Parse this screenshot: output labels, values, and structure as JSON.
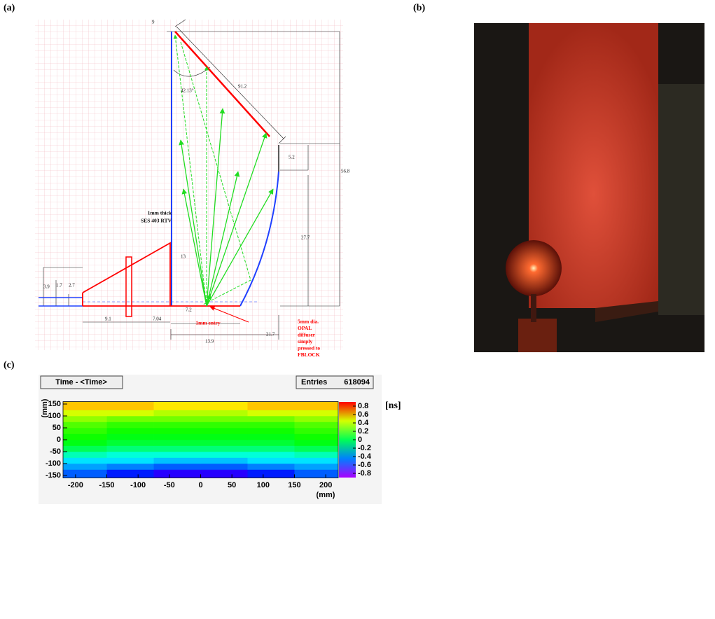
{
  "panel_labels": [
    "(a)",
    "(b)",
    "(c)"
  ],
  "diagram": {
    "dimensions": [
      "9",
      "42.13°",
      "91.2",
      "5.2",
      "56.8",
      "27.7",
      "3.9",
      "1.7",
      "2.7",
      "9.1",
      "7.04",
      "7.2",
      "13",
      "13.9",
      "21.7"
    ],
    "rtv_note": [
      "1mm thick",
      "SES 403 RTV"
    ],
    "entry_note": "1mm entry",
    "diffuser_note": [
      "5mm dia.",
      "OPAL",
      "diffuser",
      "simply",
      "pressed to",
      "FBLOCK"
    ]
  },
  "chart_data": {
    "type": "heatmap",
    "title": "Time - <Time>",
    "stats_label": "Entries",
    "stats_value": "618094",
    "x_label": "(mm)",
    "y_label": "(mm)",
    "z_label": "[ns]",
    "xbins": [
      -220,
      -150,
      -75,
      0,
      75,
      150,
      220
    ],
    "ybins": [
      -160,
      -125,
      -100,
      -75,
      -50,
      -25,
      0,
      25,
      50,
      75,
      100,
      125,
      160
    ],
    "values": [
      [
        -0.5,
        -0.6,
        -0.7,
        -0.7,
        -0.6,
        -0.5
      ],
      [
        -0.4,
        -0.45,
        -0.5,
        -0.5,
        -0.45,
        -0.4
      ],
      [
        -0.3,
        -0.3,
        -0.35,
        -0.35,
        -0.3,
        -0.3
      ],
      [
        -0.15,
        -0.2,
        -0.2,
        -0.2,
        -0.2,
        -0.15
      ],
      [
        0,
        -0.05,
        -0.05,
        -0.05,
        -0.05,
        0
      ],
      [
        0.1,
        0.05,
        0.05,
        0.05,
        0.05,
        0.1
      ],
      [
        0.15,
        0.1,
        0.1,
        0.1,
        0.1,
        0.15
      ],
      [
        0.2,
        0.15,
        0.15,
        0.15,
        0.15,
        0.2
      ],
      [
        0.25,
        0.2,
        0.2,
        0.2,
        0.2,
        0.25
      ],
      [
        0.35,
        0.3,
        0.3,
        0.3,
        0.3,
        0.35
      ],
      [
        0.45,
        0.45,
        0.4,
        0.4,
        0.45,
        0.45
      ],
      [
        0.6,
        0.6,
        0.55,
        0.55,
        0.6,
        0.6
      ]
    ],
    "xlim": [
      -220,
      220
    ],
    "ylim": [
      -160,
      160
    ],
    "zlim": [
      -0.9,
      0.9
    ],
    "xticks": [
      -200,
      -150,
      -100,
      -50,
      0,
      50,
      100,
      150,
      200
    ],
    "yticks": [
      -150,
      -100,
      -50,
      0,
      50,
      100,
      150
    ],
    "zticks": [
      -0.8,
      -0.6,
      -0.4,
      -0.2,
      0,
      0.2,
      0.4,
      0.6,
      0.8
    ]
  }
}
